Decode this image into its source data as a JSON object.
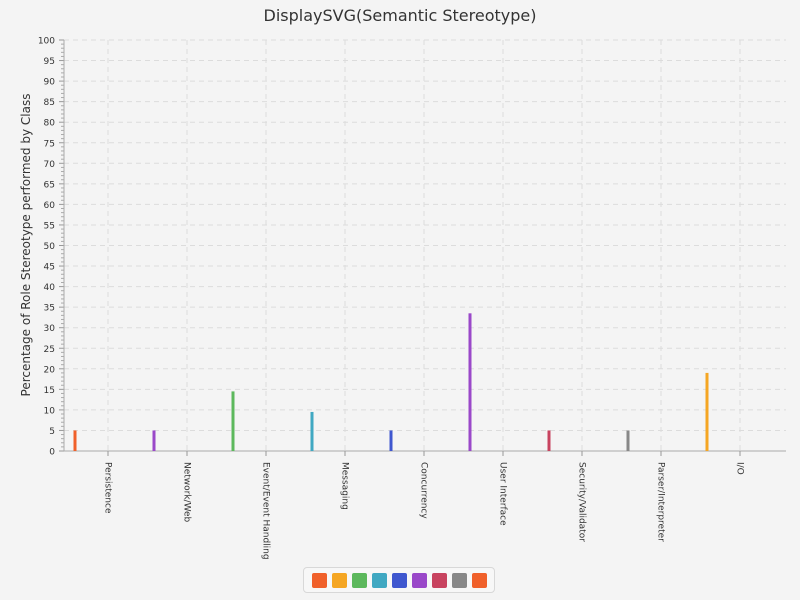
{
  "chart_data": {
    "type": "bar",
    "title": "DisplaySVG(Semantic Stereotype)",
    "xlabel": "",
    "ylabel": "Percentage of Role Stereotype performed by Class",
    "ylim": [
      0,
      100
    ],
    "y_major_step": 5,
    "y_minor_step": 1,
    "grid": true,
    "legend_position": "bottom",
    "categories": [
      "Persistence",
      "Network/Web",
      "Event/Event Handling",
      "Messaging",
      "Concurrency",
      "User Interface",
      "Security/Validator",
      "Parser/Interpreter",
      "I/O"
    ],
    "values": [
      5,
      5,
      14.5,
      9.5,
      5,
      33.5,
      5,
      5,
      19
    ],
    "colors": [
      "#f0602a",
      "#9a48c9",
      "#5cb85c",
      "#40a8c2",
      "#3f57cf",
      "#9a48c9",
      "#c8435f",
      "#888888",
      "#f5a623"
    ],
    "legend_colors": [
      "#f0602a",
      "#f5a623",
      "#5cb85c",
      "#40a8c2",
      "#3f57cf",
      "#9a48c9",
      "#c8435f",
      "#888888",
      "#f0602a"
    ]
  }
}
